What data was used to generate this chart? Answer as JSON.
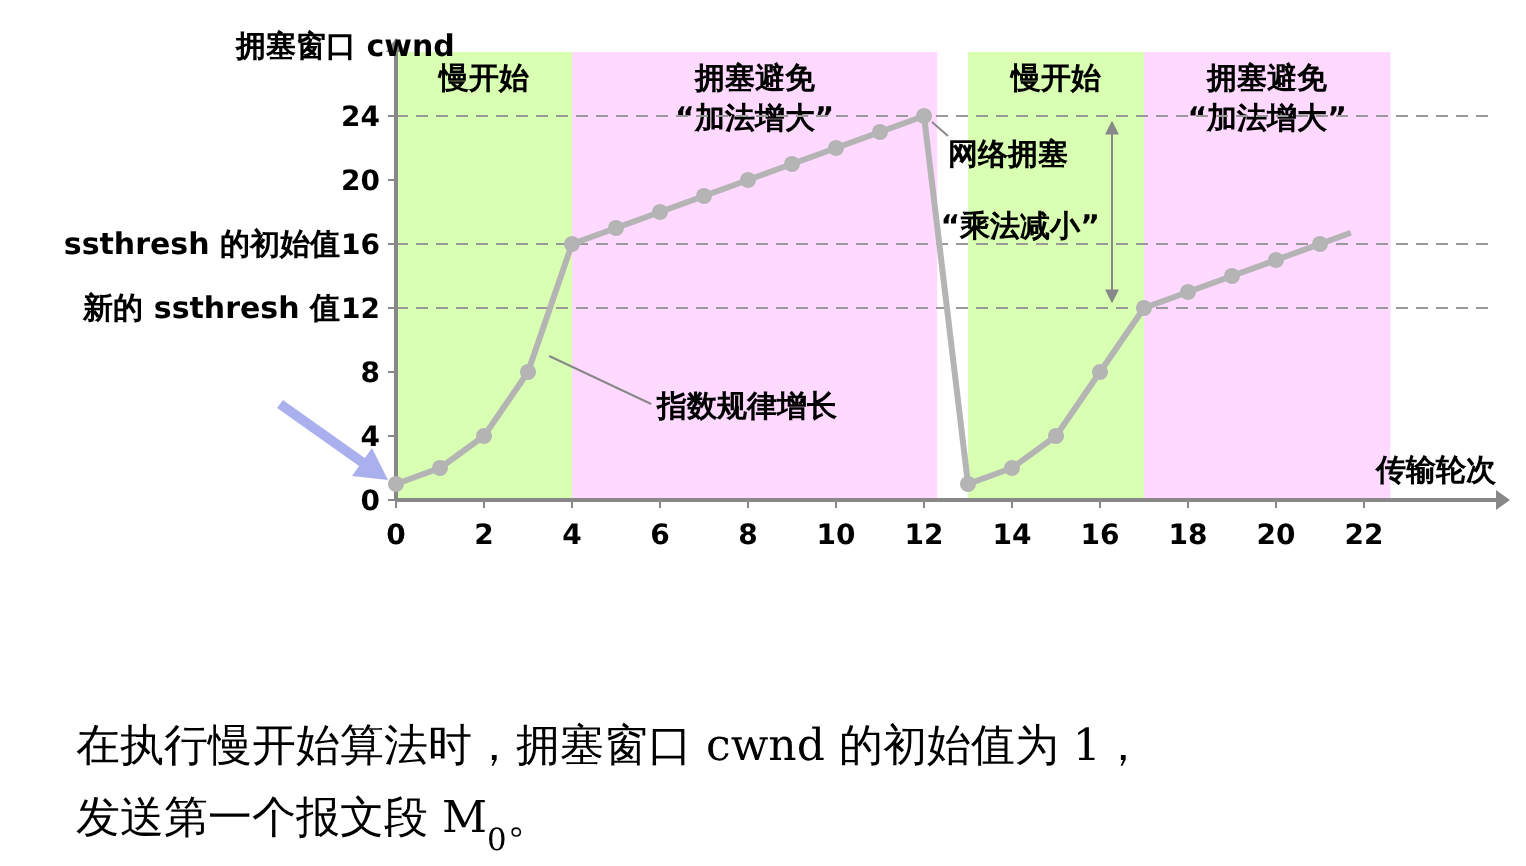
{
  "chart_data": {
    "type": "line",
    "xlabel": "传输轮次",
    "ylabel": "拥塞窗口 cwnd",
    "marker": "circle",
    "line_style": "solid",
    "xlim": [
      0,
      25
    ],
    "ylim": [
      0,
      28
    ],
    "xticks": [
      0,
      2,
      4,
      6,
      8,
      10,
      12,
      14,
      16,
      18,
      20,
      22
    ],
    "yticks": [
      0,
      4,
      8,
      12,
      16,
      20,
      24
    ],
    "series": [
      {
        "color": "#b4b4b4",
        "x": [
          0,
          1,
          2,
          3,
          4,
          5,
          6,
          7,
          8,
          9,
          10,
          11,
          12,
          13,
          14,
          15,
          16,
          17,
          18,
          19,
          20,
          21
        ],
        "values": [
          1,
          2,
          4,
          8,
          16,
          17,
          18,
          19,
          20,
          21,
          22,
          23,
          24,
          1,
          2,
          4,
          8,
          12,
          13,
          14,
          15,
          16
        ]
      },
      {
        "color": "#b4b4b4",
        "marker": "none",
        "x": [
          21,
          21.7
        ],
        "values": [
          16,
          16.7
        ]
      }
    ],
    "ref_lines": [
      {
        "axis": "y",
        "value": 24,
        "label": null,
        "line_style": "dashed",
        "color": "#999999"
      },
      {
        "axis": "y",
        "value": 16,
        "label": "ssthresh 的初始值",
        "line_style": "dashed",
        "color": "#999999"
      },
      {
        "axis": "y",
        "value": 12,
        "label": "新的 ssthresh 值",
        "line_style": "dashed",
        "color": "#999999"
      }
    ],
    "bands": [
      {
        "axis": "x",
        "from": 0,
        "to": 4,
        "label": "慢开始",
        "color": "#ccff99"
      },
      {
        "axis": "x",
        "from": 4,
        "to": 12.3,
        "label": "拥塞避免\n“加法增大”",
        "color": "#ffccff"
      },
      {
        "axis": "x",
        "from": 13,
        "to": 17,
        "label": "慢开始",
        "color": "#ccff99"
      },
      {
        "axis": "x",
        "from": 17,
        "to": 22.6,
        "label": "拥塞避免\n“加法增大”",
        "color": "#ffccff"
      }
    ],
    "annotations": [
      {
        "text": "网络拥塞",
        "x": 12,
        "y": 24
      },
      {
        "text": "指数规律增长",
        "x": 3.3,
        "y": 9
      },
      "“乘法减小”",
      "在执行慢开始算法时，拥塞窗口 cwnd 的初始值为 1，",
      "发送第一个报文段 M$_{0}$。"
    ]
  }
}
